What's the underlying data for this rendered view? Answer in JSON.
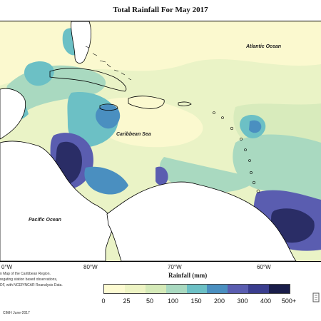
{
  "title": "Total Rainfall For May 2017",
  "labels": {
    "atlantic": "Atlantic Ocean",
    "caribbean": "Caribbean Sea",
    "pacific": "Pacific Ocean"
  },
  "longitudes": [
    {
      "text": "0°W"
    },
    {
      "text": "80°W"
    },
    {
      "text": "70°W"
    },
    {
      "text": "60°W"
    }
  ],
  "legend": {
    "title": "Rainfall (mm)",
    "ticks": [
      "0",
      "25",
      "50",
      "100",
      "150",
      "200",
      "300",
      "400",
      "500+"
    ],
    "colors": [
      "#fdfbd2",
      "#eef4c4",
      "#d5eab8",
      "#a9d9c0",
      "#6cc0c5",
      "#4a8fc0",
      "#5a5db0",
      "#3a3d8e",
      "#1a1d4a"
    ]
  },
  "footnote": {
    "line1": "n Map of the Caribbean Region.",
    "line2": "regating station based observations,",
    "line3": "DF, with NCEP/NCAR Reanalysis Data."
  },
  "credit": "CIMH June-2017"
}
